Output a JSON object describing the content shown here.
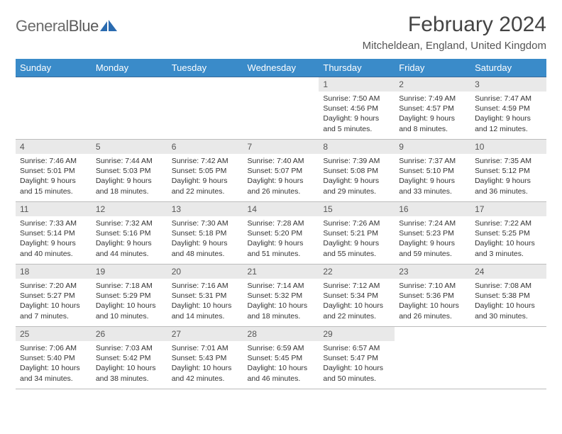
{
  "brand": {
    "name_a": "General",
    "name_b": "Blue"
  },
  "title": "February 2024",
  "location": "Mitcheldean, England, United Kingdom",
  "theme": {
    "header_bg": "#3a8bc9",
    "header_fg": "#ffffff",
    "row_sep": "#3a6a9a",
    "daynum_bg": "#e9e9e9",
    "text": "#333333"
  },
  "weekdays": [
    "Sunday",
    "Monday",
    "Tuesday",
    "Wednesday",
    "Thursday",
    "Friday",
    "Saturday"
  ],
  "weeks": [
    [
      null,
      null,
      null,
      null,
      {
        "n": "1",
        "sr": "7:50 AM",
        "ss": "4:56 PM",
        "dl": "9 hours and 5 minutes."
      },
      {
        "n": "2",
        "sr": "7:49 AM",
        "ss": "4:57 PM",
        "dl": "9 hours and 8 minutes."
      },
      {
        "n": "3",
        "sr": "7:47 AM",
        "ss": "4:59 PM",
        "dl": "9 hours and 12 minutes."
      }
    ],
    [
      {
        "n": "4",
        "sr": "7:46 AM",
        "ss": "5:01 PM",
        "dl": "9 hours and 15 minutes."
      },
      {
        "n": "5",
        "sr": "7:44 AM",
        "ss": "5:03 PM",
        "dl": "9 hours and 18 minutes."
      },
      {
        "n": "6",
        "sr": "7:42 AM",
        "ss": "5:05 PM",
        "dl": "9 hours and 22 minutes."
      },
      {
        "n": "7",
        "sr": "7:40 AM",
        "ss": "5:07 PM",
        "dl": "9 hours and 26 minutes."
      },
      {
        "n": "8",
        "sr": "7:39 AM",
        "ss": "5:08 PM",
        "dl": "9 hours and 29 minutes."
      },
      {
        "n": "9",
        "sr": "7:37 AM",
        "ss": "5:10 PM",
        "dl": "9 hours and 33 minutes."
      },
      {
        "n": "10",
        "sr": "7:35 AM",
        "ss": "5:12 PM",
        "dl": "9 hours and 36 minutes."
      }
    ],
    [
      {
        "n": "11",
        "sr": "7:33 AM",
        "ss": "5:14 PM",
        "dl": "9 hours and 40 minutes."
      },
      {
        "n": "12",
        "sr": "7:32 AM",
        "ss": "5:16 PM",
        "dl": "9 hours and 44 minutes."
      },
      {
        "n": "13",
        "sr": "7:30 AM",
        "ss": "5:18 PM",
        "dl": "9 hours and 48 minutes."
      },
      {
        "n": "14",
        "sr": "7:28 AM",
        "ss": "5:20 PM",
        "dl": "9 hours and 51 minutes."
      },
      {
        "n": "15",
        "sr": "7:26 AM",
        "ss": "5:21 PM",
        "dl": "9 hours and 55 minutes."
      },
      {
        "n": "16",
        "sr": "7:24 AM",
        "ss": "5:23 PM",
        "dl": "9 hours and 59 minutes."
      },
      {
        "n": "17",
        "sr": "7:22 AM",
        "ss": "5:25 PM",
        "dl": "10 hours and 3 minutes."
      }
    ],
    [
      {
        "n": "18",
        "sr": "7:20 AM",
        "ss": "5:27 PM",
        "dl": "10 hours and 7 minutes."
      },
      {
        "n": "19",
        "sr": "7:18 AM",
        "ss": "5:29 PM",
        "dl": "10 hours and 10 minutes."
      },
      {
        "n": "20",
        "sr": "7:16 AM",
        "ss": "5:31 PM",
        "dl": "10 hours and 14 minutes."
      },
      {
        "n": "21",
        "sr": "7:14 AM",
        "ss": "5:32 PM",
        "dl": "10 hours and 18 minutes."
      },
      {
        "n": "22",
        "sr": "7:12 AM",
        "ss": "5:34 PM",
        "dl": "10 hours and 22 minutes."
      },
      {
        "n": "23",
        "sr": "7:10 AM",
        "ss": "5:36 PM",
        "dl": "10 hours and 26 minutes."
      },
      {
        "n": "24",
        "sr": "7:08 AM",
        "ss": "5:38 PM",
        "dl": "10 hours and 30 minutes."
      }
    ],
    [
      {
        "n": "25",
        "sr": "7:06 AM",
        "ss": "5:40 PM",
        "dl": "10 hours and 34 minutes."
      },
      {
        "n": "26",
        "sr": "7:03 AM",
        "ss": "5:42 PM",
        "dl": "10 hours and 38 minutes."
      },
      {
        "n": "27",
        "sr": "7:01 AM",
        "ss": "5:43 PM",
        "dl": "10 hours and 42 minutes."
      },
      {
        "n": "28",
        "sr": "6:59 AM",
        "ss": "5:45 PM",
        "dl": "10 hours and 46 minutes."
      },
      {
        "n": "29",
        "sr": "6:57 AM",
        "ss": "5:47 PM",
        "dl": "10 hours and 50 minutes."
      },
      null,
      null
    ]
  ],
  "labels": {
    "sunrise": "Sunrise:",
    "sunset": "Sunset:",
    "daylight": "Daylight:"
  }
}
